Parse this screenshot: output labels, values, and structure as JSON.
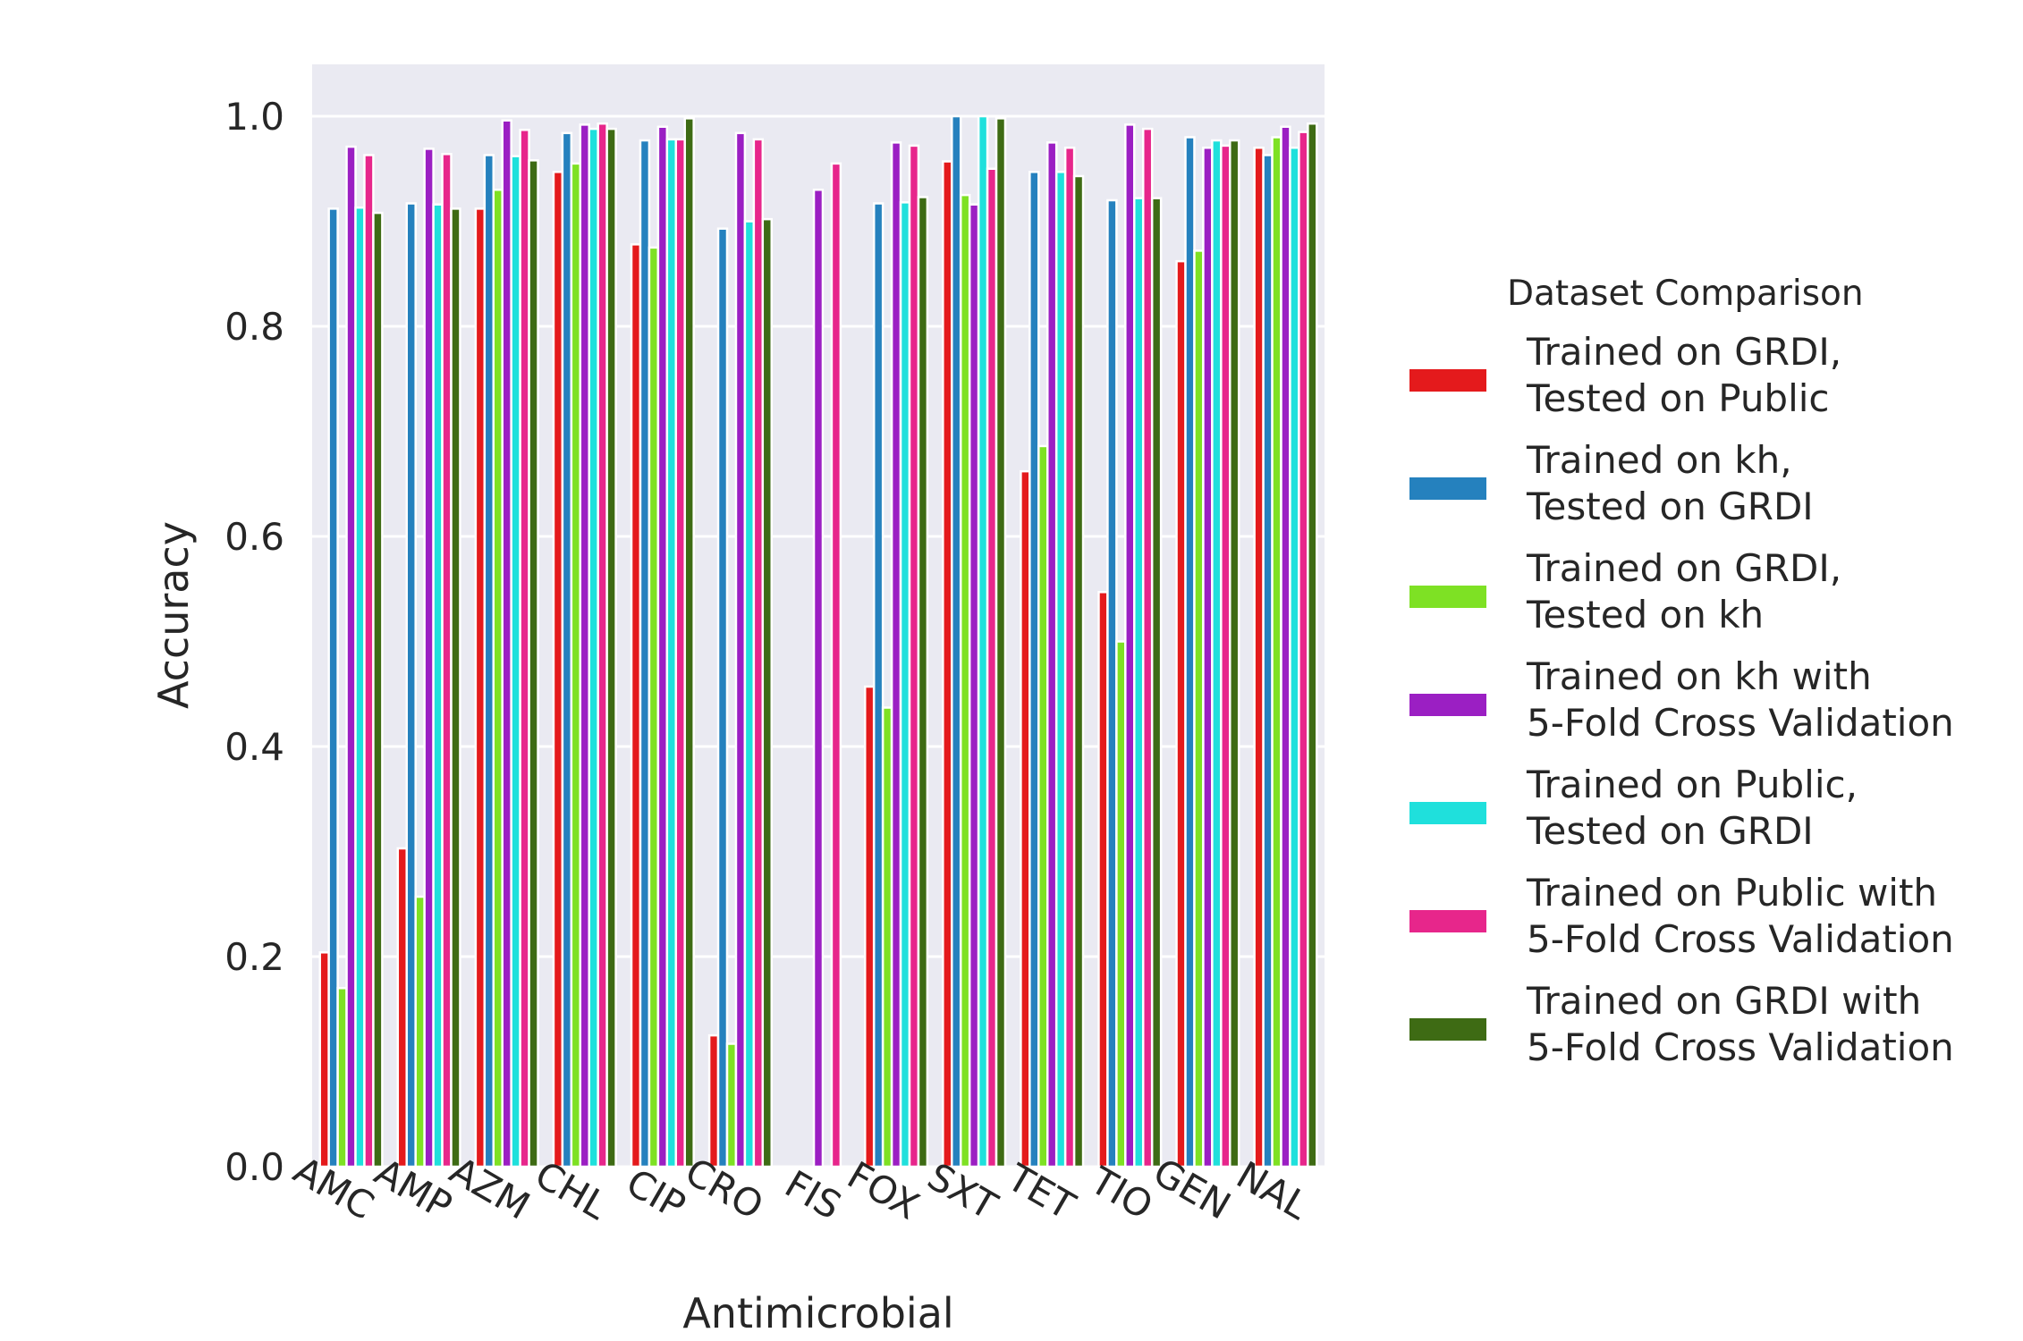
{
  "chart_data": {
    "type": "bar",
    "title": "",
    "xlabel": "Antimicrobial",
    "ylabel": "Accuracy",
    "ylim": [
      0,
      1.05
    ],
    "yticks": [
      "0.0",
      "0.2",
      "0.4",
      "0.6",
      "0.8",
      "1.0"
    ],
    "grid": true,
    "legend_title": "Dataset Comparison",
    "legend_placement": "right",
    "categories": [
      "AMC",
      "AMP",
      "AZM",
      "CHL",
      "CIP",
      "CRO",
      "FIS",
      "FOX",
      "SXT",
      "TET",
      "TIO",
      "GEN",
      "NAL"
    ],
    "series": [
      {
        "name": "Trained on GRDI,\nTested on Public",
        "color": "#e41a1c",
        "values": [
          0.204,
          0.303,
          0.912,
          0.947,
          0.878,
          0.125,
          0.0,
          0.457,
          0.957,
          0.662,
          0.547,
          0.862,
          0.97
        ]
      },
      {
        "name": "Trained on kh,\nTested on GRDI",
        "color": "#2581be",
        "values": [
          0.912,
          0.917,
          0.963,
          0.984,
          0.977,
          0.893,
          0.0,
          0.917,
          1.0,
          0.947,
          0.92,
          0.98,
          0.963
        ]
      },
      {
        "name": "Trained on GRDI,\nTested on kh",
        "color": "#7ee124",
        "values": [
          0.17,
          0.257,
          0.93,
          0.955,
          0.875,
          0.117,
          0.0,
          0.437,
          0.925,
          0.686,
          0.5,
          0.872,
          0.98
        ]
      },
      {
        "name": "Trained on kh with\n5-Fold Cross Validation",
        "color": "#9b1fc3",
        "values": [
          0.971,
          0.969,
          0.996,
          0.992,
          0.99,
          0.984,
          0.93,
          0.975,
          0.916,
          0.975,
          0.992,
          0.97,
          0.99
        ]
      },
      {
        "name": "Trained on Public,\nTested on GRDI",
        "color": "#1fe0dc",
        "values": [
          0.913,
          0.916,
          0.962,
          0.988,
          0.978,
          0.9,
          0.0,
          0.918,
          1.0,
          0.947,
          0.922,
          0.977,
          0.97
        ]
      },
      {
        "name": "Trained on Public with\n5-Fold Cross Validation",
        "color": "#e7268b",
        "values": [
          0.963,
          0.964,
          0.987,
          0.993,
          0.978,
          0.978,
          0.955,
          0.972,
          0.95,
          0.97,
          0.988,
          0.972,
          0.985
        ]
      },
      {
        "name": "Trained on GRDI with\n5-Fold Cross Validation",
        "color": "#3e6b14",
        "values": [
          0.908,
          0.912,
          0.958,
          0.988,
          0.998,
          0.902,
          0.0,
          0.923,
          0.998,
          0.943,
          0.922,
          0.977,
          0.993
        ]
      }
    ]
  }
}
